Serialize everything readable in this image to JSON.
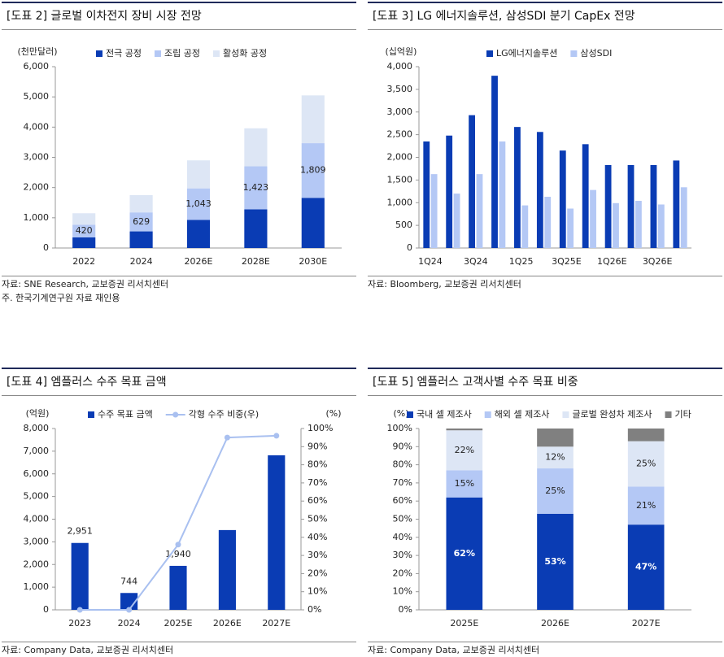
{
  "chart_data": [
    {
      "type": "stacked_bar",
      "title": "[도표 2] 글로벌 이차전지 장비 시장 전망",
      "y_label": "(천만달러)",
      "categories": [
        "2022",
        "2024",
        "2026E",
        "2028E",
        "2030E"
      ],
      "series": [
        {
          "name": "전극 공정",
          "color": "#0a3cb4",
          "values": [
            350,
            550,
            930,
            1280,
            1660
          ]
        },
        {
          "name": "조립 공정",
          "color": "#b4c8f5",
          "values": [
            420,
            629,
            1043,
            1423,
            1809
          ],
          "value_labels": [
            "420",
            "629",
            "1,043",
            "1,423",
            "1,809"
          ]
        },
        {
          "name": "활성화 공정",
          "color": "#dde6f5",
          "values": [
            380,
            571,
            927,
            1257,
            1581
          ]
        }
      ],
      "ylim": [
        0,
        6000
      ],
      "yticks": [
        0,
        {
          "value": 1000,
          "label": "1,000"
        },
        {
          "value": 2000,
          "label": "2,000"
        },
        {
          "value": 3000,
          "label": "3,000"
        },
        {
          "value": 4000,
          "label": "4,000"
        },
        {
          "value": 5000,
          "label": "5,000"
        },
        {
          "value": 6000,
          "label": "6,000"
        }
      ],
      "source": "자료: SNE Research, 교보증권 리서치센터",
      "note": "주. 한국기계연구원 자료 재인용"
    },
    {
      "type": "grouped_bar",
      "title": "[도표 3] LG 에너지솔루션, 삼성SDI 분기 CapEx 전망",
      "y_label": "(십억원)",
      "categories": [
        "1Q24",
        null,
        "3Q24",
        null,
        "1Q25",
        null,
        "3Q25E",
        null,
        "1Q26E",
        null,
        "3Q26E",
        null
      ],
      "series": [
        {
          "name": "LG에너지솔루션",
          "color": "#0a3cb4",
          "values": [
            2350,
            2480,
            2930,
            3800,
            2670,
            2560,
            2150,
            2290,
            1830,
            1830,
            1830,
            1930
          ]
        },
        {
          "name": "삼성SDI",
          "color": "#b4c8f5",
          "values": [
            1630,
            1200,
            1630,
            2350,
            940,
            1130,
            870,
            1280,
            990,
            1040,
            960,
            1340
          ]
        }
      ],
      "ylim": [
        0,
        4000
      ],
      "yticks": [
        0,
        500,
        {
          "value": 1000,
          "label": "1,000"
        },
        {
          "value": 1500,
          "label": "1,500"
        },
        {
          "value": 2000,
          "label": "2,000"
        },
        {
          "value": 2500,
          "label": "2,500"
        },
        {
          "value": 3000,
          "label": "3,000"
        },
        {
          "value": 3500,
          "label": "3,500"
        },
        {
          "value": 4000,
          "label": "4,000"
        }
      ],
      "source": "자료: Bloomberg, 교보증권 리서치센터"
    },
    {
      "type": "bar_line",
      "title": "[도표 4] 엠플러스 수주 목표 금액",
      "y_label": "(억원)",
      "y2_label": "(%)",
      "categories": [
        "2023",
        "2024",
        "2025E",
        "2026E",
        "2027E"
      ],
      "series": [
        {
          "name": "수주 목표 금액",
          "type": "bar",
          "color": "#0a3cb4",
          "values": [
            2951,
            744,
            1940,
            3520,
            6820
          ],
          "value_labels": [
            "2,951",
            "744",
            "1,940",
            null,
            null
          ]
        },
        {
          "name": "각형 수주 비중(우)",
          "type": "line",
          "axis": "y2",
          "color": "#a9c0f0",
          "values": [
            0,
            0,
            36,
            95,
            96
          ]
        }
      ],
      "ylim": [
        0,
        8000
      ],
      "yticks": [
        0,
        {
          "value": 1000,
          "label": "1,000"
        },
        {
          "value": 2000,
          "label": "2,000"
        },
        {
          "value": 3000,
          "label": "3,000"
        },
        {
          "value": 4000,
          "label": "4,000"
        },
        {
          "value": 5000,
          "label": "5,000"
        },
        {
          "value": 6000,
          "label": "6,000"
        },
        {
          "value": 7000,
          "label": "7,000"
        },
        {
          "value": 8000,
          "label": "8,000"
        }
      ],
      "y2lim": [
        0,
        100
      ],
      "y2ticks": [
        {
          "value": 0,
          "label": "0%"
        },
        {
          "value": 10,
          "label": "10%"
        },
        {
          "value": 20,
          "label": "20%"
        },
        {
          "value": 30,
          "label": "30%"
        },
        {
          "value": 40,
          "label": "40%"
        },
        {
          "value": 50,
          "label": "50%"
        },
        {
          "value": 60,
          "label": "60%"
        },
        {
          "value": 70,
          "label": "70%"
        },
        {
          "value": 80,
          "label": "80%"
        },
        {
          "value": 90,
          "label": "90%"
        },
        {
          "value": 100,
          "label": "100%"
        }
      ],
      "source": "자료: Company Data, 교보증권 리서치센터"
    },
    {
      "type": "stacked_bar",
      "title": "[도표 5] 엠플러스 고객사별 수주 목표 비중",
      "y_label": "(%)",
      "categories": [
        "2025E",
        "2026E",
        "2027E"
      ],
      "series": [
        {
          "name": "국내 셀 제조사",
          "color": "#0a3cb4",
          "values": [
            62,
            53,
            47
          ],
          "value_labels": [
            "62%",
            "53%",
            "47%"
          ]
        },
        {
          "name": "해외 셀 제조사",
          "color": "#b4c8f5",
          "values": [
            15,
            25,
            21
          ],
          "value_labels": [
            "15%",
            "25%",
            "21%"
          ]
        },
        {
          "name": "글로벌 완성차 제조사",
          "color": "#dde6f5",
          "values": [
            22,
            12,
            25
          ],
          "value_labels": [
            "22%",
            "12%",
            "25%"
          ]
        },
        {
          "name": "기타",
          "color": "#808080",
          "values": [
            1,
            10,
            7
          ]
        }
      ],
      "ylim": [
        0,
        100
      ],
      "yticks": [
        {
          "value": 0,
          "label": "0%"
        },
        {
          "value": 10,
          "label": "10%"
        },
        {
          "value": 20,
          "label": "20%"
        },
        {
          "value": 30,
          "label": "30%"
        },
        {
          "value": 40,
          "label": "40%"
        },
        {
          "value": 50,
          "label": "50%"
        },
        {
          "value": 60,
          "label": "60%"
        },
        {
          "value": 70,
          "label": "70%"
        },
        {
          "value": 80,
          "label": "80%"
        },
        {
          "value": 90,
          "label": "90%"
        },
        {
          "value": 100,
          "label": "100%"
        }
      ],
      "source": "자료: Company Data, 교보증권 리서치센터"
    }
  ]
}
